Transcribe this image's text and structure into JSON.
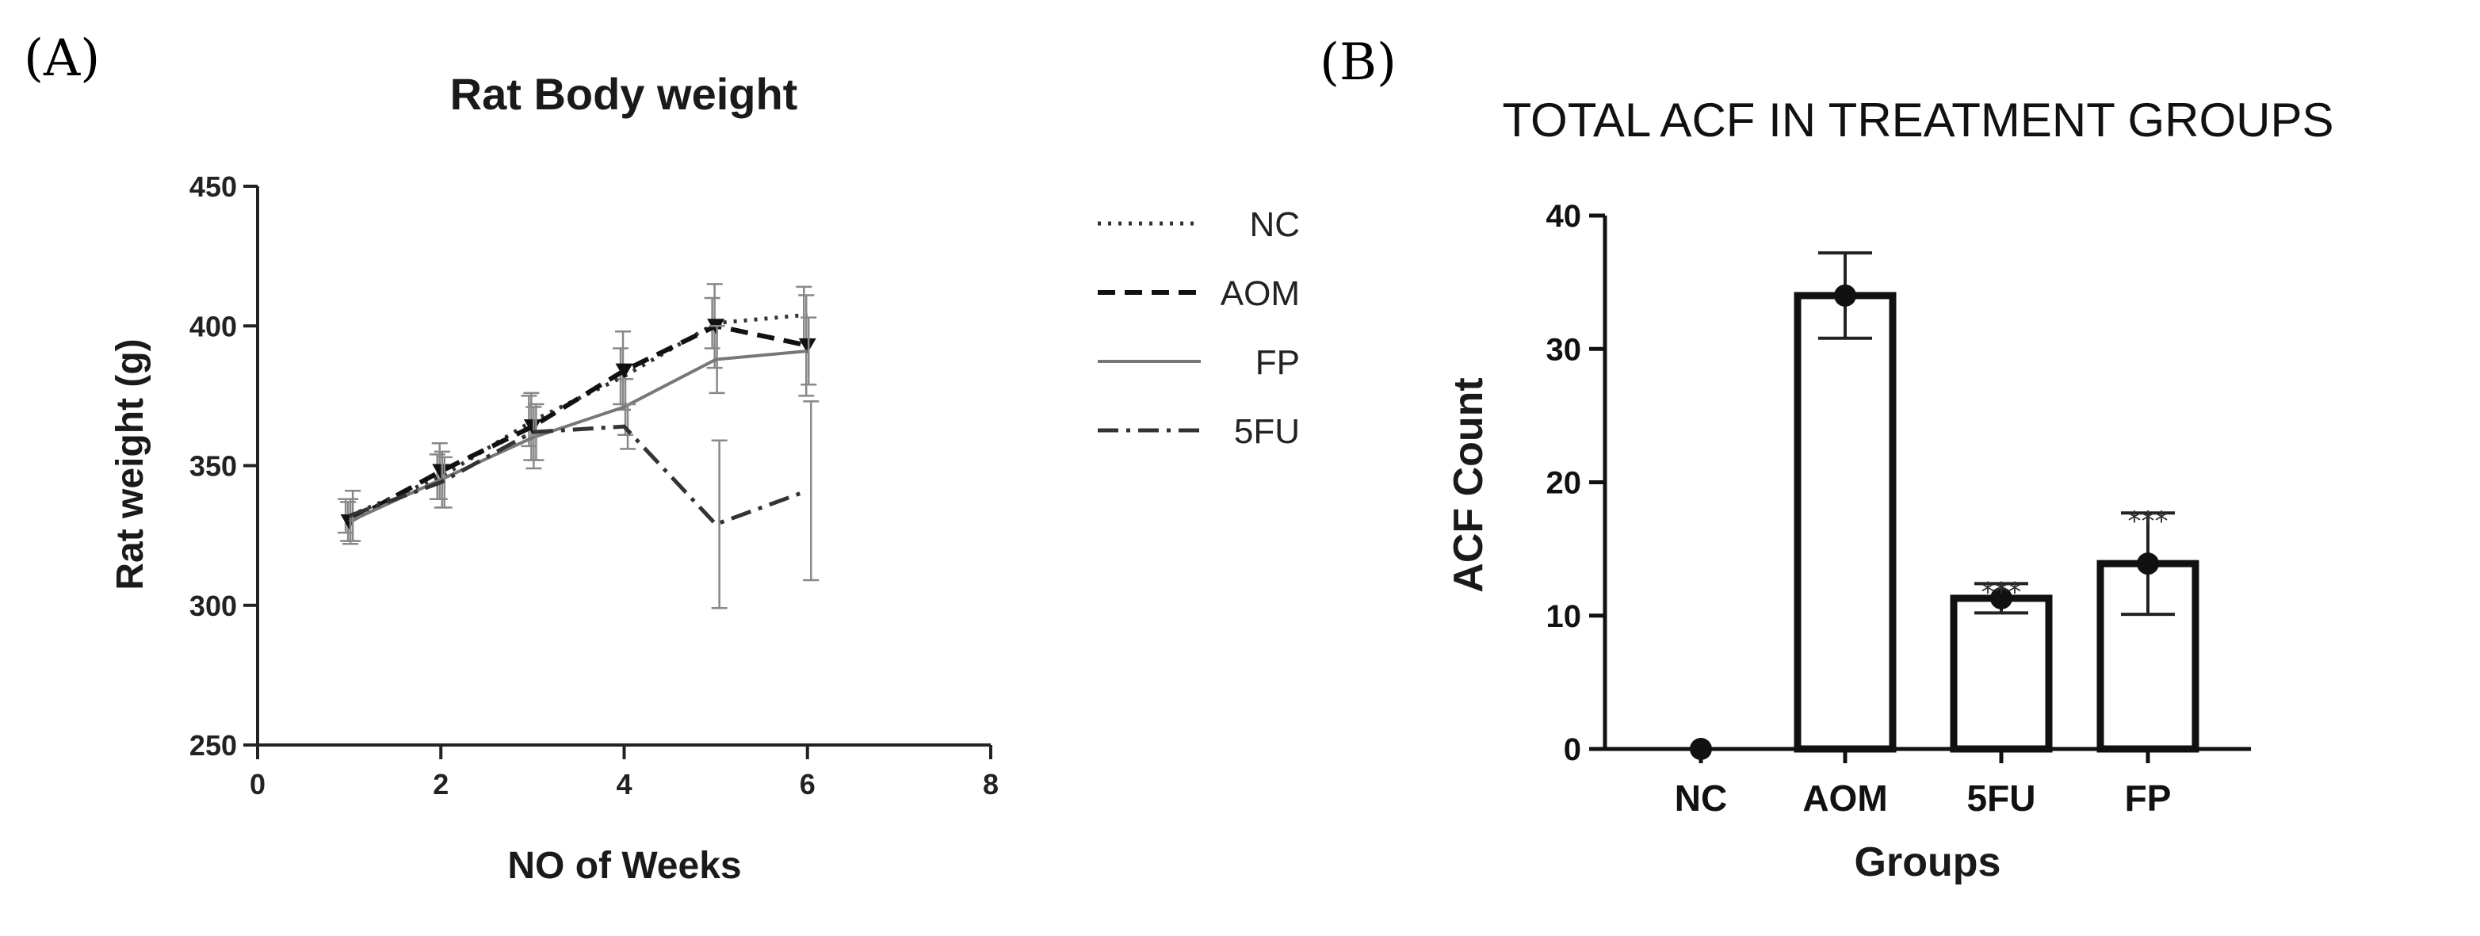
{
  "panels": {
    "a_label": "(A)",
    "b_label": "(B)"
  },
  "chart_data": [
    {
      "type": "line",
      "title": "Rat Body weight",
      "xlabel": "NO of Weeks",
      "ylabel": "Rat weight (g)",
      "xlim": [
        0,
        8
      ],
      "ylim": [
        250,
        450
      ],
      "xticks": [
        0,
        2,
        4,
        6,
        8
      ],
      "yticks": [
        250,
        300,
        350,
        400,
        450
      ],
      "legend_position": "right",
      "x": [
        1,
        2,
        3,
        4,
        5,
        6
      ],
      "series": [
        {
          "name": "NC",
          "style": "dotted",
          "color": "#333333",
          "values": [
            332,
            346,
            366,
            382,
            401,
            404
          ],
          "errors": [
            6,
            8,
            9,
            10,
            9,
            10
          ]
        },
        {
          "name": "AOM",
          "style": "dashed",
          "color": "#111111",
          "values": [
            330,
            348,
            364,
            384,
            400,
            393
          ],
          "errors": [
            7,
            10,
            12,
            14,
            15,
            18
          ]
        },
        {
          "name": "FP",
          "style": "solid",
          "color": "#777777",
          "values": [
            330,
            345,
            360,
            371,
            388,
            391
          ],
          "errors": [
            8,
            10,
            11,
            10,
            12,
            12
          ]
        },
        {
          "name": "5FU",
          "style": "dashdot",
          "color": "#333333",
          "values": [
            332,
            344,
            362,
            364,
            329,
            341
          ],
          "errors": [
            9,
            9,
            10,
            8,
            30,
            32
          ]
        }
      ]
    },
    {
      "type": "bar",
      "title": "TOTAL ACF IN TREATMENT GROUPS",
      "xlabel": "Groups",
      "ylabel": "ACF Count",
      "ylim": [
        0,
        40
      ],
      "yticks": [
        0,
        10,
        20,
        30,
        40
      ],
      "categories": [
        "NC",
        "AOM",
        "5FU",
        "FP"
      ],
      "values": [
        0,
        34,
        11.3,
        13.9
      ],
      "errors": [
        0,
        3.2,
        1.1,
        3.8
      ],
      "annotations": [
        "",
        "",
        "***",
        "***"
      ]
    }
  ]
}
